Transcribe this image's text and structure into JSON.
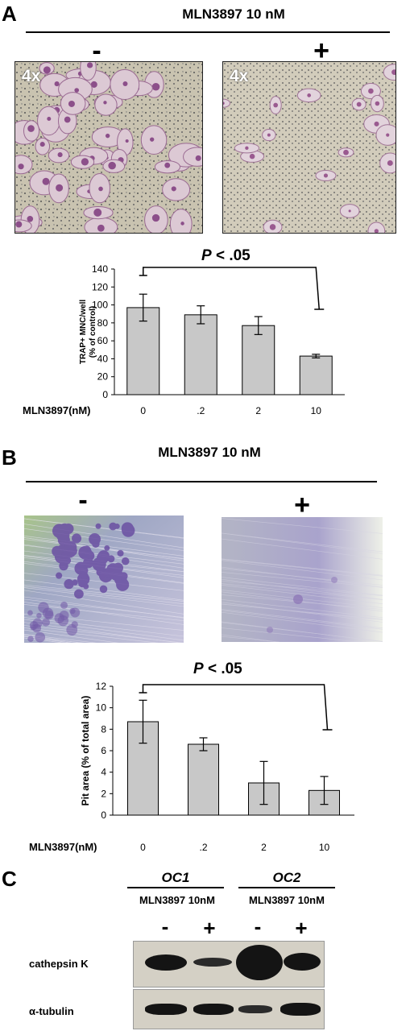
{
  "panel_a": {
    "letter": "A",
    "heading": "MLN3897 10 nM",
    "minus": "-",
    "plus": "+",
    "left_mag": "4x",
    "right_mag": "4x",
    "pvalue_prefix": "P",
    "pvalue_rest": " < .05"
  },
  "panel_b": {
    "letter": "B",
    "heading": "MLN3897 10 nM",
    "minus": "-",
    "plus": "+",
    "pvalue_prefix": "P",
    "pvalue_rest": " < .05"
  },
  "panel_c": {
    "letter": "C",
    "oc1": "OC1",
    "oc2": "OC2",
    "cond1": "MLN3897 10nM",
    "cond2": "MLN3897 10nM",
    "signs": [
      "-",
      "+",
      "-",
      "+"
    ],
    "row1": "cathepsin K",
    "row2": "α-tubulin"
  },
  "chart_data": [
    {
      "type": "bar",
      "categories": [
        "0",
        ".2",
        "2",
        "10"
      ],
      "values": [
        97,
        89,
        77,
        43
      ],
      "errors": [
        15,
        10,
        10,
        2
      ],
      "ylabel": "TRAP+ MNC/well\n(% of control)",
      "xlabel": "MLN3897(nM)",
      "ylim": [
        0,
        140
      ],
      "yticks": [
        0,
        20,
        40,
        60,
        80,
        100,
        120,
        140
      ],
      "bar_color": "#c8c8c8"
    },
    {
      "type": "bar",
      "categories": [
        "0",
        ".2",
        "2",
        "10"
      ],
      "values": [
        8.7,
        6.6,
        3.0,
        2.3
      ],
      "errors": [
        2.0,
        0.6,
        2.0,
        1.3
      ],
      "ylabel": "Pit area (% of total area)",
      "xlabel": "MLN3897(nM)",
      "ylim": [
        0,
        12
      ],
      "yticks": [
        0,
        2,
        4,
        6,
        8,
        10,
        12
      ],
      "bar_color": "#c8c8c8"
    }
  ]
}
